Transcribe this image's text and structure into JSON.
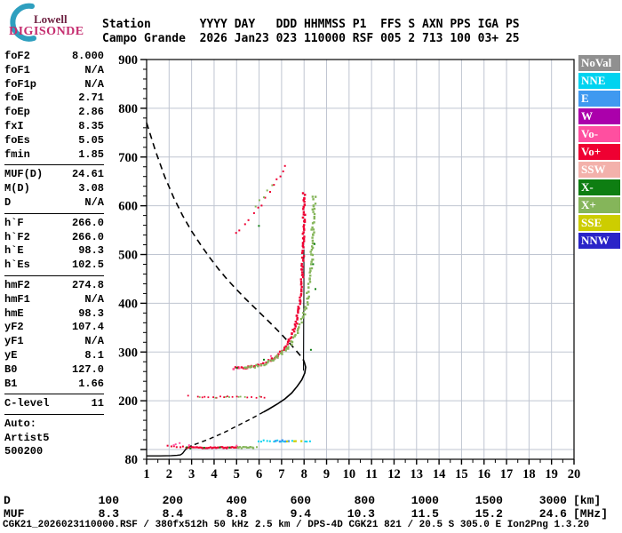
{
  "logo": {
    "line1": "Lowell",
    "line2": "DIGISONDE",
    "arc_color": "#2e9fbf"
  },
  "header": {
    "row1": "Station       YYYY DAY   DDD HHMMSS P1  FFS S AXN PPS IGA PS",
    "row2": "Campo Grande  2026 Jan23 023 110000 RSF 005 2 713 100 03+ 25"
  },
  "params": {
    "groups": [
      {
        "rows": [
          [
            "foF2",
            "8.000"
          ],
          [
            "foF1",
            "N/A"
          ],
          [
            "foF1p",
            "N/A"
          ],
          [
            "foE",
            "2.71"
          ],
          [
            "foEp",
            "2.86"
          ],
          [
            "fxI",
            "8.35"
          ],
          [
            "foEs",
            "5.05"
          ],
          [
            "fmin",
            "1.85"
          ]
        ]
      },
      {
        "rows": [
          [
            "MUF(D)",
            "24.61"
          ],
          [
            "M(D)",
            "3.08"
          ],
          [
            "D",
            "N/A"
          ]
        ]
      },
      {
        "rows": [
          [
            "h`F",
            "266.0"
          ],
          [
            "h`F2",
            "266.0"
          ],
          [
            "h`E",
            "98.3"
          ],
          [
            "h`Es",
            "102.5"
          ]
        ]
      },
      {
        "rows": [
          [
            "hmF2",
            "274.8"
          ],
          [
            "hmF1",
            "N/A"
          ],
          [
            "hmE",
            "98.3"
          ],
          [
            "yF2",
            "107.4"
          ],
          [
            "yF1",
            "N/A"
          ],
          [
            "yE",
            "8.1"
          ],
          [
            "B0",
            "127.0"
          ],
          [
            "B1",
            "1.66"
          ]
        ]
      },
      {
        "rows": [
          [
            "C-level",
            "11"
          ]
        ]
      }
    ],
    "auto_lines": [
      "Auto:",
      "Artist5",
      "500200"
    ]
  },
  "legend": {
    "items": [
      {
        "label": "NoVal",
        "color": "#909090"
      },
      {
        "label": "NNE",
        "color": "#00d3f0"
      },
      {
        "label": "E",
        "color": "#3f99f0"
      },
      {
        "label": "W",
        "color": "#ab00ab"
      },
      {
        "label": "Vo-",
        "color": "#ff4fa0"
      },
      {
        "label": "Vo+",
        "color": "#ef0032"
      },
      {
        "label": "SSW",
        "color": "#f3b1ab"
      },
      {
        "label": "X-",
        "color": "#0e7e12"
      },
      {
        "label": "X+",
        "color": "#85b55a"
      },
      {
        "label": "SSE",
        "color": "#cdcd00"
      },
      {
        "label": "NNW",
        "color": "#2a24c8"
      }
    ]
  },
  "muf_table": {
    "rows": [
      {
        "label": "D",
        "values": [
          "100",
          "200",
          "400",
          "600",
          "800",
          "1000",
          "1500",
          "3000"
        ],
        "unit": "[km]"
      },
      {
        "label": "MUF",
        "values": [
          "8.3",
          "8.4",
          "8.8",
          "9.4",
          "10.3",
          "11.5",
          "15.2",
          "24.6"
        ],
        "unit": "[MHz]"
      }
    ]
  },
  "footer": "CGK21_2026023110000.RSF / 380fx512h 50 kHz 2.5 km / DPS-4D CGK21 821 / 20.5 S 305.0 E Ion2Png 1.3.20",
  "chart_data": {
    "type": "scatter",
    "x_range": [
      1,
      20
    ],
    "y_range": [
      80,
      900
    ],
    "x_ticks": [
      1,
      2,
      3,
      4,
      5,
      6,
      7,
      8,
      9,
      10,
      11,
      12,
      13,
      14,
      15,
      16,
      17,
      18,
      19,
      20
    ],
    "x_minor_step": 0.5,
    "y_tick_labels": [
      200,
      300,
      400,
      500,
      600,
      700,
      800,
      900
    ],
    "y_minor_step": 20,
    "y_bottom_label": "80",
    "grid": true,
    "grid_color": "#bfc5d1",
    "legend_position": "right-outside",
    "series": [
      {
        "name": "F2-trace-O-mode(Vo+)",
        "color": "#ef0032",
        "mode": "dense",
        "size": 2.4,
        "step": 2.0,
        "jitter": [
          0.05,
          2.5
        ],
        "points": [
          [
            4.85,
            266
          ],
          [
            5.2,
            267
          ],
          [
            5.55,
            269
          ],
          [
            5.9,
            272
          ],
          [
            6.2,
            277
          ],
          [
            6.5,
            283
          ],
          [
            6.75,
            291
          ],
          [
            7.0,
            301
          ],
          [
            7.2,
            313
          ],
          [
            7.4,
            328
          ],
          [
            7.55,
            345
          ],
          [
            7.68,
            365
          ],
          [
            7.78,
            390
          ],
          [
            7.85,
            415
          ],
          [
            7.9,
            445
          ],
          [
            7.93,
            475
          ],
          [
            7.96,
            505
          ],
          [
            7.98,
            535
          ],
          [
            7.99,
            565
          ],
          [
            8.0,
            595
          ],
          [
            8.0,
            625
          ]
        ]
      },
      {
        "name": "F2-trace-X-mode(X+)",
        "color": "#85b55a",
        "mode": "dense",
        "size": 2.4,
        "step": 2.4,
        "jitter": [
          0.07,
          3
        ],
        "points": [
          [
            5.3,
            266
          ],
          [
            5.65,
            269
          ],
          [
            6.0,
            273
          ],
          [
            6.35,
            279
          ],
          [
            6.65,
            286
          ],
          [
            6.95,
            295
          ],
          [
            7.2,
            306
          ],
          [
            7.45,
            320
          ],
          [
            7.65,
            336
          ],
          [
            7.85,
            356
          ],
          [
            8.0,
            378
          ],
          [
            8.12,
            402
          ],
          [
            8.22,
            430
          ],
          [
            8.3,
            460
          ],
          [
            8.35,
            492
          ],
          [
            8.38,
            525
          ],
          [
            8.41,
            558
          ],
          [
            8.43,
            590
          ],
          [
            8.45,
            620
          ]
        ]
      },
      {
        "name": "second-hop-O",
        "color": "#ef0032",
        "mode": "dots",
        "size": 2,
        "jitter": [
          0.04,
          4
        ],
        "points": [
          [
            5.0,
            546
          ],
          [
            5.15,
            552
          ],
          [
            5.35,
            562
          ],
          [
            5.55,
            572
          ],
          [
            5.75,
            583
          ],
          [
            5.95,
            594
          ],
          [
            6.1,
            603
          ],
          [
            6.3,
            615
          ],
          [
            6.5,
            628
          ],
          [
            6.65,
            640
          ],
          [
            6.8,
            652
          ],
          [
            6.95,
            663
          ],
          [
            7.05,
            671
          ],
          [
            7.15,
            679
          ]
        ]
      },
      {
        "name": "second-hop-X",
        "color": "#85b55a",
        "mode": "dots",
        "size": 2,
        "jitter": [
          0.04,
          4
        ],
        "points": [
          [
            5.85,
            596
          ],
          [
            6.05,
            608
          ],
          [
            6.2,
            618
          ],
          [
            6.4,
            632
          ],
          [
            6.55,
            645
          ]
        ]
      },
      {
        "name": "Es-layer-O",
        "color": "#ef0032",
        "mode": "dense",
        "size": 2.2,
        "step": 1.6,
        "jitter": [
          0.02,
          1.2
        ],
        "points": [
          [
            2.75,
            104
          ],
          [
            3.3,
            104
          ],
          [
            3.9,
            104
          ],
          [
            4.5,
            104
          ],
          [
            5.05,
            104
          ]
        ]
      },
      {
        "name": "Es-layer-lead-dots",
        "color": "#ef0032",
        "mode": "dots",
        "size": 2,
        "jitter": [
          0.02,
          1.5
        ],
        "points": [
          [
            1.95,
            107
          ],
          [
            2.1,
            105
          ],
          [
            2.2,
            108
          ],
          [
            2.35,
            106
          ],
          [
            2.5,
            104
          ],
          [
            2.6,
            107
          ]
        ]
      },
      {
        "name": "Es-layer-Vo-minus",
        "color": "#ff4fa0",
        "mode": "dots",
        "size": 2,
        "jitter": [
          0.02,
          1
        ],
        "points": [
          [
            2.3,
            111
          ],
          [
            2.45,
            113
          ],
          [
            2.2,
            109
          ],
          [
            2.9,
            108
          ],
          [
            5.0,
            107
          ]
        ]
      },
      {
        "name": "Es-layer-X-tail",
        "color": "#85b55a",
        "mode": "dense",
        "size": 2.2,
        "step": 1.6,
        "jitter": [
          0.02,
          1.2
        ],
        "points": [
          [
            5.05,
            104
          ],
          [
            5.4,
            104
          ],
          [
            5.75,
            104
          ]
        ]
      },
      {
        "name": "Es-layer-X-dot",
        "color": "#85b55a",
        "mode": "dots",
        "size": 2,
        "jitter": [
          0,
          0
        ],
        "points": [
          [
            5.9,
            105
          ]
        ]
      },
      {
        "name": "Es-layer-Xminus-specks",
        "color": "#0e7e12",
        "mode": "dots",
        "size": 2,
        "jitter": [
          0.02,
          1
        ],
        "points": [
          [
            2.8,
            104
          ],
          [
            3.55,
            104
          ],
          [
            4.25,
            105
          ],
          [
            4.7,
            104
          ],
          [
            2.95,
            103
          ]
        ]
      },
      {
        "name": "Es-multiple-O",
        "color": "#ef0032",
        "mode": "dots",
        "size": 1.8,
        "jitter": [
          0.03,
          1
        ],
        "points": [
          [
            2.85,
            211
          ],
          [
            3.25,
            208
          ],
          [
            3.45,
            207
          ],
          [
            3.6,
            208
          ],
          [
            3.75,
            207
          ],
          [
            3.95,
            208
          ],
          [
            4.1,
            207
          ],
          [
            4.3,
            208
          ],
          [
            4.45,
            207
          ],
          [
            4.6,
            208
          ],
          [
            4.8,
            207
          ],
          [
            5.0,
            208
          ],
          [
            5.5,
            207
          ],
          [
            5.65,
            208
          ],
          [
            5.9,
            207
          ],
          [
            6.1,
            208
          ],
          [
            6.25,
            207
          ]
        ]
      },
      {
        "name": "Es-multiple-X",
        "color": "#85b55a",
        "mode": "dots",
        "size": 1.8,
        "jitter": [
          0.03,
          1
        ],
        "points": [
          [
            3.35,
            207
          ],
          [
            4.05,
            207
          ],
          [
            4.5,
            207
          ],
          [
            4.7,
            208
          ],
          [
            5.1,
            207
          ],
          [
            5.2,
            208
          ],
          [
            5.35,
            207
          ],
          [
            6.0,
            208
          ]
        ]
      },
      {
        "name": "upper-Es-NNE",
        "color": "#00d3f0",
        "mode": "dots",
        "size": 2,
        "jitter": [
          0.03,
          0.8
        ],
        "points": [
          [
            5.95,
            117
          ],
          [
            6.1,
            117
          ],
          [
            6.2,
            118
          ],
          [
            6.35,
            117
          ],
          [
            6.5,
            117
          ],
          [
            6.65,
            117
          ],
          [
            6.8,
            118
          ],
          [
            7.0,
            117
          ],
          [
            7.1,
            117
          ],
          [
            7.45,
            117
          ],
          [
            8.05,
            117
          ],
          [
            8.15,
            117
          ],
          [
            8.25,
            117
          ]
        ]
      },
      {
        "name": "upper-Es-E",
        "color": "#3f99f0",
        "mode": "dots",
        "size": 2.5,
        "jitter": [
          0.03,
          0.8
        ],
        "points": [
          [
            6.75,
            117
          ],
          [
            6.9,
            117
          ],
          [
            7.05,
            118
          ],
          [
            7.2,
            117
          ],
          [
            7.3,
            117
          ]
        ]
      },
      {
        "name": "upper-Es-SSE",
        "color": "#cdcd00",
        "mode": "dots",
        "size": 2.2,
        "jitter": [
          0.03,
          0.8
        ],
        "points": [
          [
            7.25,
            117
          ],
          [
            7.55,
            117
          ],
          [
            7.65,
            117
          ],
          [
            7.9,
            117
          ]
        ]
      },
      {
        "name": "F-trace-Xminus-specks",
        "color": "#0e7e12",
        "mode": "dots",
        "size": 2,
        "jitter": [
          0.03,
          3
        ],
        "points": [
          [
            8.45,
            520
          ],
          [
            8.4,
            478
          ],
          [
            8.3,
            302
          ],
          [
            6.2,
            282
          ],
          [
            6.0,
            560
          ],
          [
            5.0,
            269
          ],
          [
            8.5,
            430
          ]
        ]
      },
      {
        "name": "F-trace-Vo-minus-specks",
        "color": "#ff4fa0",
        "mode": "dots",
        "size": 2,
        "jitter": [
          0.03,
          2
        ],
        "points": [
          [
            4.9,
            266
          ],
          [
            5.1,
            265
          ],
          [
            6.55,
            290
          ]
        ]
      }
    ],
    "curves": [
      {
        "name": "transmission-curve-dashed",
        "color": "#000",
        "width": 1.6,
        "dash": "7,5",
        "points": [
          [
            1.0,
            770
          ],
          [
            1.4,
            712
          ],
          [
            1.8,
            660
          ],
          [
            2.2,
            617
          ],
          [
            2.6,
            580
          ],
          [
            3.0,
            548
          ],
          [
            3.4,
            520
          ],
          [
            3.8,
            494
          ],
          [
            4.2,
            470
          ],
          [
            4.6,
            448
          ],
          [
            5.0,
            428
          ],
          [
            5.4,
            409
          ],
          [
            5.8,
            391
          ],
          [
            6.2,
            373
          ],
          [
            6.6,
            355
          ],
          [
            7.0,
            336
          ],
          [
            7.4,
            316
          ],
          [
            7.7,
            300
          ],
          [
            7.9,
            289
          ],
          [
            8.0,
            281
          ]
        ]
      },
      {
        "name": "profile-nose-solid",
        "color": "#000",
        "width": 1.6,
        "dash": "",
        "points": [
          [
            8.0,
            281
          ],
          [
            8.07,
            269
          ],
          [
            8.03,
            257
          ],
          [
            7.9,
            243
          ],
          [
            7.7,
            230
          ],
          [
            7.45,
            216
          ],
          [
            7.15,
            204
          ],
          [
            6.8,
            193
          ],
          [
            6.4,
            182
          ],
          [
            6.2,
            177
          ]
        ]
      },
      {
        "name": "profile-valley-dashed",
        "color": "#000",
        "width": 1.4,
        "dash": "5,4",
        "points": [
          [
            6.2,
            177
          ],
          [
            5.6,
            162
          ],
          [
            5.0,
            148
          ],
          [
            4.4,
            134
          ],
          [
            3.8,
            122
          ],
          [
            3.3,
            113
          ],
          [
            3.0,
            108
          ]
        ]
      },
      {
        "name": "profile-E-region-solid",
        "color": "#000",
        "width": 1.4,
        "dash": "",
        "points": [
          [
            3.0,
            108
          ],
          [
            2.85,
            104
          ],
          [
            2.75,
            101
          ],
          [
            2.68,
            97
          ],
          [
            2.6,
            92
          ],
          [
            2.5,
            89
          ],
          [
            2.35,
            88
          ],
          [
            2.1,
            87.5
          ],
          [
            1.6,
            87
          ],
          [
            1.0,
            87
          ]
        ]
      },
      {
        "name": "foF2-vertical-line",
        "color": "#000",
        "width": 1,
        "dash": "",
        "points": [
          [
            7.97,
            262
          ],
          [
            7.98,
            350
          ],
          [
            7.99,
            440
          ],
          [
            7.99,
            510
          ]
        ]
      }
    ]
  }
}
